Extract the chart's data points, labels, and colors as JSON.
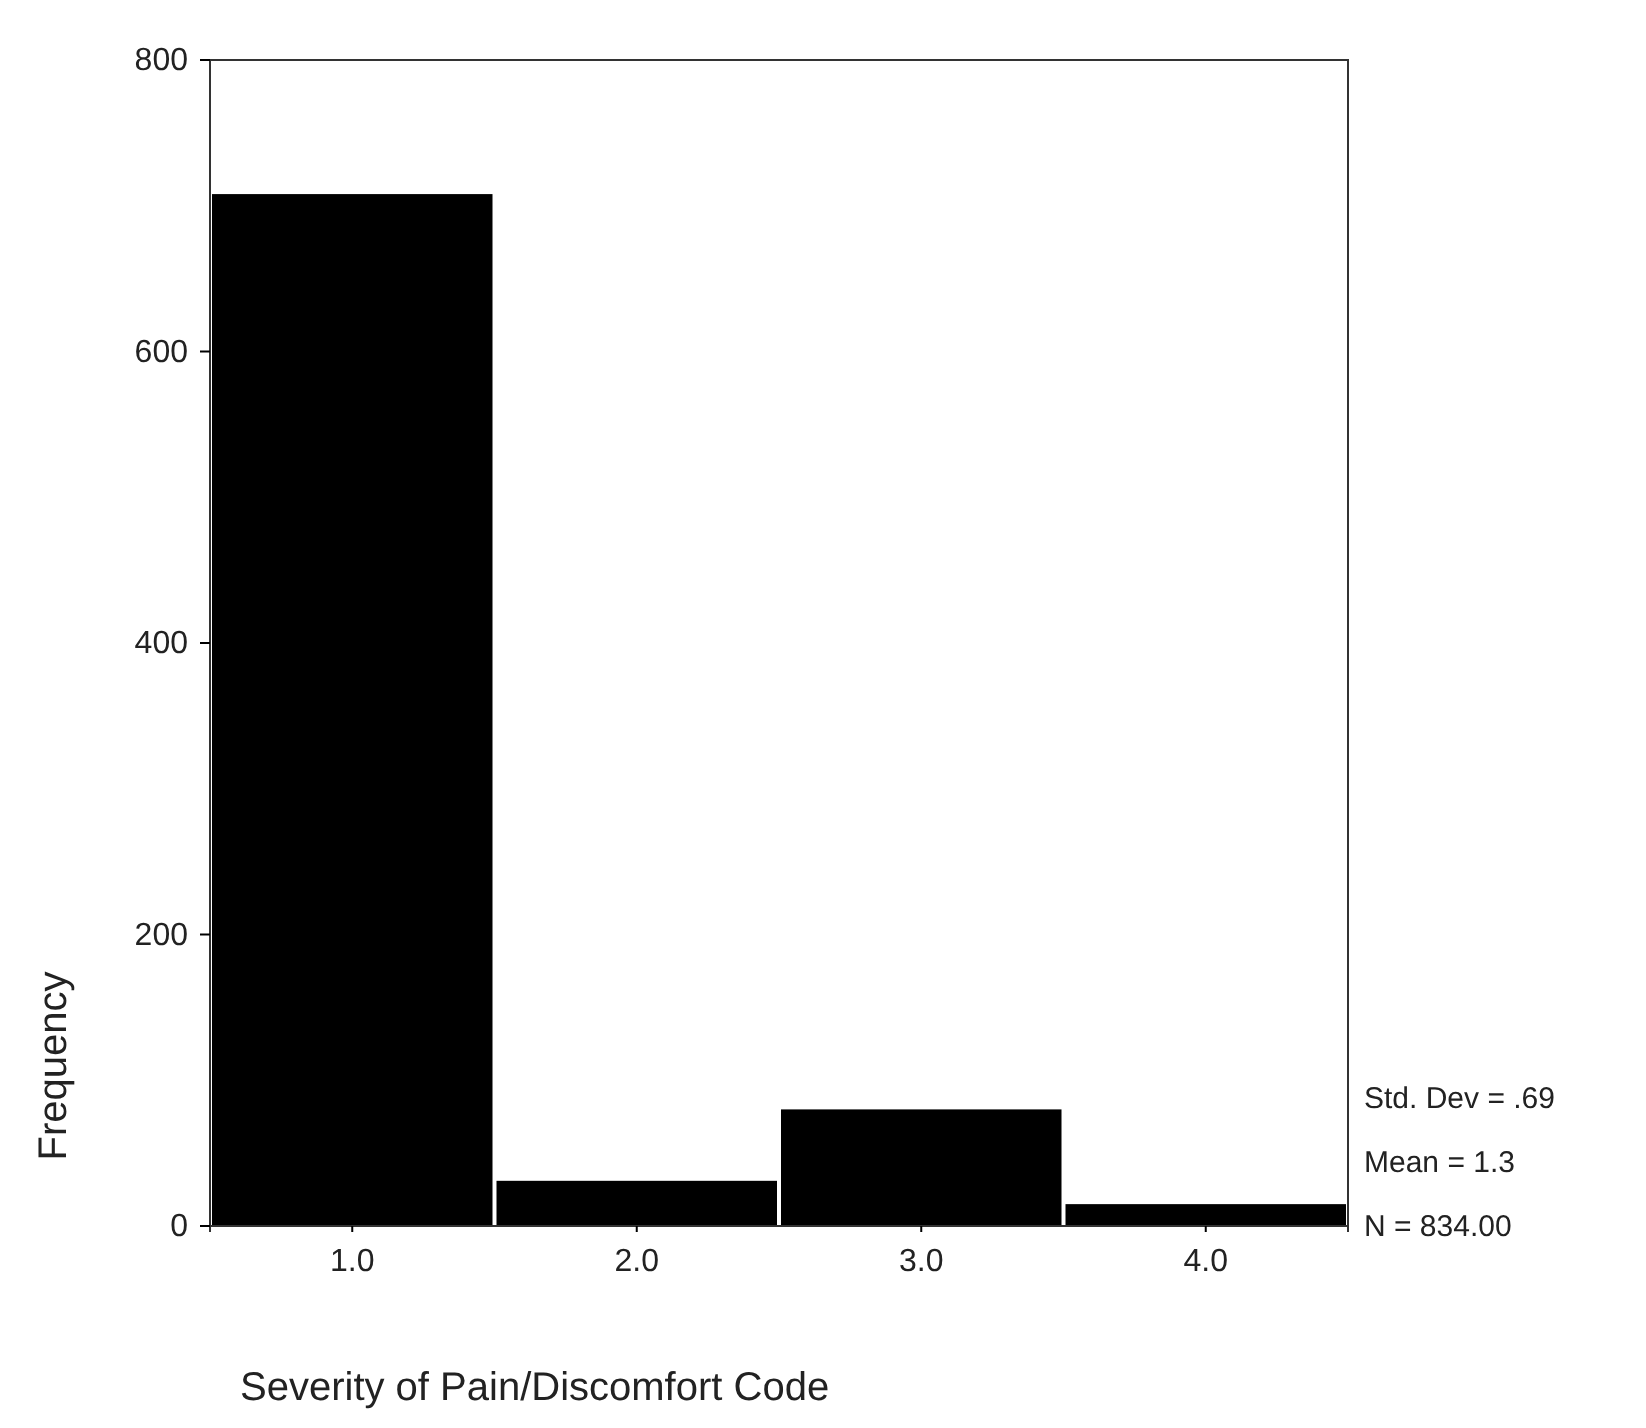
{
  "chart_data": {
    "type": "histogram",
    "xlabel": "Severity of Pain/Discomfort Code",
    "ylabel": "Frequency",
    "bins": [
      0.5,
      1.5,
      2.5,
      3.5,
      4.5
    ],
    "values": [
      708,
      31,
      80,
      15
    ],
    "color": "#000000",
    "xlim": [
      0.5,
      4.5
    ],
    "xticks": [
      {
        "value": 1,
        "label": "1.0"
      },
      {
        "value": 2,
        "label": "2.0"
      },
      {
        "value": 3,
        "label": "3.0"
      },
      {
        "value": 4,
        "label": "4.0"
      }
    ],
    "ylim": [
      0,
      800
    ],
    "yticks": [
      0,
      200,
      400,
      600,
      800
    ],
    "grid": false,
    "annotations": [
      "Std. Dev = .69",
      "Mean = 1.3",
      "N = 834.00"
    ]
  }
}
